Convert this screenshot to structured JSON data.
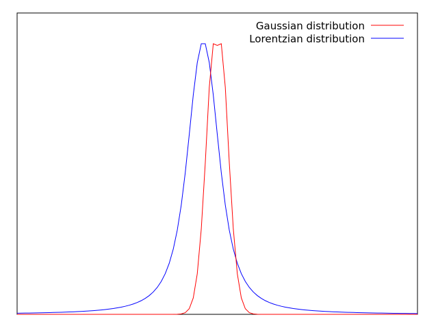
{
  "chart_data": {
    "type": "line",
    "title": "",
    "xlabel": "",
    "ylabel": "",
    "xlim": [
      -5,
      5
    ],
    "ylim": [
      0,
      1
    ],
    "grid": false,
    "axis_ticks": false,
    "legend_position": "top-right",
    "x": [
      -5.0,
      -4.9,
      -4.8,
      -4.7,
      -4.6,
      -4.5,
      -4.4,
      -4.3,
      -4.2,
      -4.1,
      -4.0,
      -3.9,
      -3.8,
      -3.7,
      -3.6,
      -3.5,
      -3.4,
      -3.3,
      -3.2,
      -3.1,
      -3.0,
      -2.9,
      -2.8,
      -2.7,
      -2.6,
      -2.5,
      -2.4,
      -2.3,
      -2.2,
      -2.1,
      -2.0,
      -1.9,
      -1.8,
      -1.7,
      -1.6,
      -1.5,
      -1.4,
      -1.3,
      -1.2,
      -1.1,
      -1.0,
      -0.9,
      -0.8,
      -0.7,
      -0.6,
      -0.5,
      -0.4,
      -0.3,
      -0.2,
      -0.1,
      0.0,
      0.1,
      0.2,
      0.3,
      0.4,
      0.5,
      0.6,
      0.7,
      0.8,
      0.9,
      1.0,
      1.1,
      1.2,
      1.3,
      1.4,
      1.5,
      1.6,
      1.7,
      1.8,
      1.9,
      2.0,
      2.1,
      2.2,
      2.3,
      2.4,
      2.5,
      2.6,
      2.7,
      2.8,
      2.9,
      3.0,
      3.1,
      3.2,
      3.3,
      3.4,
      3.5,
      3.6,
      3.7,
      3.8,
      3.9,
      4.0,
      4.1,
      4.2,
      4.3,
      4.4,
      4.5,
      4.6,
      4.7,
      4.8,
      4.9,
      5.0
    ],
    "series": [
      {
        "name": "Gaussian distribution",
        "color": "#ff0000",
        "values": [
          0.0,
          0.0,
          0.0,
          0.0,
          0.0,
          0.0,
          0.0,
          0.0,
          0.0,
          0.0,
          0.0,
          0.0,
          0.0,
          0.0,
          0.0,
          0.0,
          0.0,
          0.0,
          0.0,
          0.0,
          0.0,
          0.0,
          0.0,
          0.0,
          0.0,
          0.0,
          0.0,
          0.0,
          0.0,
          0.0,
          0.0,
          0.0,
          0.0,
          0.0,
          0.0,
          0.0,
          0.0,
          0.0,
          0.0,
          0.0001,
          0.0003,
          0.0015,
          0.0061,
          0.0208,
          0.0607,
          0.1502,
          0.3154,
          0.5599,
          0.8393,
          1.0,
          0.9939,
          1.0,
          0.8393,
          0.5599,
          0.3154,
          0.1502,
          0.0607,
          0.0208,
          0.0061,
          0.0015,
          0.0003,
          0.0001,
          0.0,
          0.0,
          0.0,
          0.0,
          0.0,
          0.0,
          0.0,
          0.0,
          0.0,
          0.0,
          0.0,
          0.0,
          0.0,
          0.0,
          0.0,
          0.0,
          0.0,
          0.0,
          0.0,
          0.0,
          0.0,
          0.0,
          0.0,
          0.0,
          0.0,
          0.0,
          0.0,
          0.0,
          0.0,
          0.0,
          0.0,
          0.0,
          0.0,
          0.0,
          0.0,
          0.0,
          0.0,
          0.0,
          0.0
        ]
      },
      {
        "name": "Lorentzian distribution",
        "color": "#0000ff",
        "values": [
          0.0041,
          0.0043,
          0.0046,
          0.0048,
          0.0051,
          0.0054,
          0.0057,
          0.006,
          0.0064,
          0.0068,
          0.0072,
          0.0077,
          0.0082,
          0.0087,
          0.0093,
          0.01,
          0.0108,
          0.0116,
          0.0126,
          0.0136,
          0.0148,
          0.0162,
          0.0177,
          0.0195,
          0.0215,
          0.0239,
          0.0266,
          0.0298,
          0.0336,
          0.0382,
          0.0437,
          0.0505,
          0.0589,
          0.0693,
          0.0825,
          0.0995,
          0.1215,
          0.1504,
          0.1889,
          0.2407,
          0.3107,
          0.4039,
          0.5234,
          0.6646,
          0.8104,
          0.9302,
          1.0,
          1.0,
          0.9302,
          0.8104,
          0.6646,
          0.5234,
          0.4039,
          0.3107,
          0.2407,
          0.1889,
          0.1504,
          0.1215,
          0.0995,
          0.0825,
          0.0693,
          0.0589,
          0.0505,
          0.0437,
          0.0382,
          0.0336,
          0.0298,
          0.0266,
          0.0239,
          0.0215,
          0.0195,
          0.0177,
          0.0162,
          0.0148,
          0.0136,
          0.0126,
          0.0116,
          0.0108,
          0.01,
          0.0093,
          0.0087,
          0.0082,
          0.0077,
          0.0072,
          0.0068,
          0.0064,
          0.006,
          0.0057,
          0.0054,
          0.0051,
          0.0048,
          0.0046,
          0.0043,
          0.0041,
          0.0039,
          0.0037,
          0.0035,
          0.0034,
          0.0032,
          0.0031,
          0.0029
        ]
      }
    ]
  }
}
